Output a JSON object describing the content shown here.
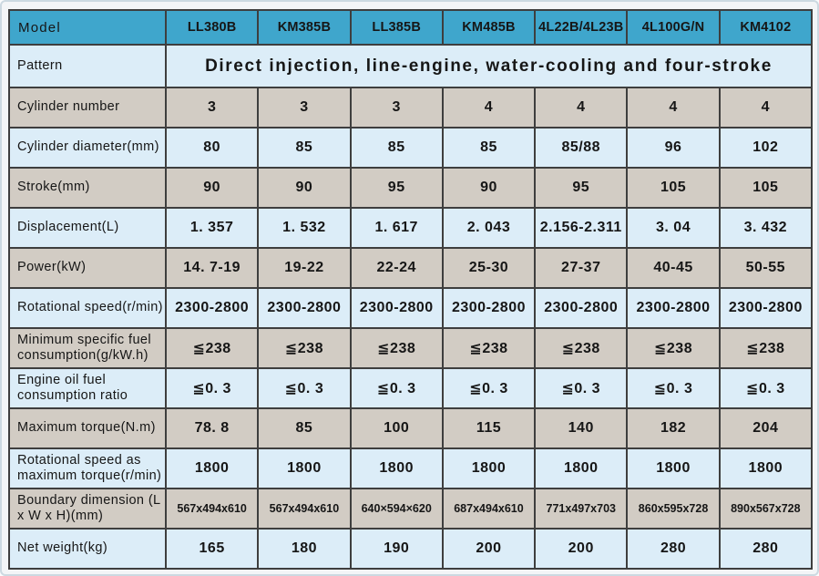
{
  "colors": {
    "header_blue": "#3fa6cc",
    "row_light_blue": "#dcedf8",
    "row_beige": "#d2ccc4",
    "grid_border": "#3e3e3e",
    "outer_frame": "#ccd9e1"
  },
  "chart_data": {
    "type": "table",
    "title": "Engine specification table",
    "columns": [
      "Model",
      "LL380B",
      "KM385B",
      "LL385B",
      "KM485B",
      "4L22B/4L23B",
      "4L100G/N",
      "KM4102"
    ]
  },
  "table": {
    "header": {
      "label": "Model",
      "models": [
        "LL380B",
        "KM385B",
        "LL385B",
        "KM485B",
        "4L22B/4L23B",
        "4L100G/N",
        "KM4102"
      ]
    },
    "pattern": {
      "label": "Pattern",
      "value": "Direct injection, line-engine, water-cooling and four-stroke"
    },
    "rows": [
      {
        "label": "Cylinder number",
        "tone": "beige",
        "values": [
          "3",
          "3",
          "3",
          "4",
          "4",
          "4",
          "4"
        ]
      },
      {
        "label": "Cylinder diameter(mm)",
        "tone": "blue",
        "values": [
          "80",
          "85",
          "85",
          "85",
          "85/88",
          "96",
          "102"
        ]
      },
      {
        "label": "Stroke(mm)",
        "tone": "beige",
        "values": [
          "90",
          "90",
          "95",
          "90",
          "95",
          "105",
          "105"
        ]
      },
      {
        "label": "Displacement(L)",
        "tone": "blue",
        "values": [
          "1. 357",
          "1. 532",
          "1. 617",
          "2. 043",
          "2.156-2.311",
          "3. 04",
          "3. 432"
        ]
      },
      {
        "label": "Power(kW)",
        "tone": "beige",
        "values": [
          "14. 7-19",
          "19-22",
          "22-24",
          "25-30",
          "27-37",
          "40-45",
          "50-55"
        ]
      },
      {
        "label": "Rotational speed(r/min)",
        "tone": "blue",
        "values": [
          "2300-2800",
          "2300-2800",
          "2300-2800",
          "2300-2800",
          "2300-2800",
          "2300-2800",
          "2300-2800"
        ]
      },
      {
        "label": "Minimum specific fuel consumption(g/kW.h)",
        "tone": "beige",
        "values": [
          "≦238",
          "≦238",
          "≦238",
          "≦238",
          "≦238",
          "≦238",
          "≦238"
        ]
      },
      {
        "label": "Engine oil fuel consumption ratio",
        "tone": "blue",
        "values": [
          "≦0. 3",
          "≦0. 3",
          "≦0. 3",
          "≦0. 3",
          "≦0. 3",
          "≦0. 3",
          "≦0. 3"
        ]
      },
      {
        "label": "Maximum torque(N.m)",
        "tone": "beige",
        "values": [
          "78. 8",
          "85",
          "100",
          "115",
          "140",
          "182",
          "204"
        ]
      },
      {
        "label": "Rotational speed as maximum torque(r/min)",
        "tone": "blue",
        "values": [
          "1800",
          "1800",
          "1800",
          "1800",
          "1800",
          "1800",
          "1800"
        ]
      },
      {
        "label": "Boundary dimension (L x W x H)(mm)",
        "tone": "beige",
        "small": true,
        "values": [
          "567x494x610",
          "567x494x610",
          "640×594×620",
          "687x494x610",
          "771x497x703",
          "860x595x728",
          "890x567x728"
        ]
      },
      {
        "label": "Net weight(kg)",
        "tone": "blue",
        "values": [
          "165",
          "180",
          "190",
          "200",
          "200",
          "280",
          "280"
        ]
      }
    ]
  }
}
